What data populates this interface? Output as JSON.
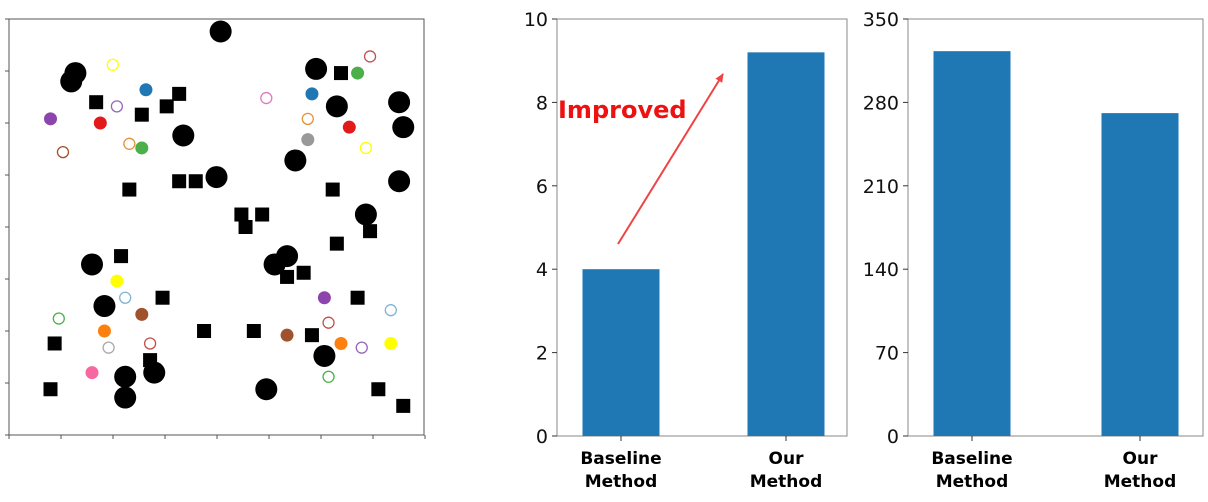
{
  "chart_data": [
    {
      "type": "scatter",
      "title": "",
      "xlabel": "",
      "ylabel": "",
      "xlim": [
        0,
        100
      ],
      "ylim": [
        0,
        100
      ],
      "tick_labels_shown": false,
      "obstacles": [
        {
          "x": 51,
          "y": 97,
          "kind": "round"
        },
        {
          "x": 16,
          "y": 87,
          "kind": "round"
        },
        {
          "x": 15,
          "y": 85,
          "kind": "round"
        },
        {
          "x": 74,
          "y": 88,
          "kind": "round"
        },
        {
          "x": 80,
          "y": 87,
          "kind": "square"
        },
        {
          "x": 41,
          "y": 82,
          "kind": "square"
        },
        {
          "x": 38,
          "y": 79,
          "kind": "square"
        },
        {
          "x": 21,
          "y": 80,
          "kind": "square"
        },
        {
          "x": 32,
          "y": 77,
          "kind": "square"
        },
        {
          "x": 79,
          "y": 79,
          "kind": "round"
        },
        {
          "x": 94,
          "y": 80,
          "kind": "round"
        },
        {
          "x": 95,
          "y": 74,
          "kind": "round"
        },
        {
          "x": 42,
          "y": 72,
          "kind": "round"
        },
        {
          "x": 69,
          "y": 66,
          "kind": "round"
        },
        {
          "x": 29,
          "y": 59,
          "kind": "square"
        },
        {
          "x": 41,
          "y": 61,
          "kind": "square"
        },
        {
          "x": 45,
          "y": 61,
          "kind": "square"
        },
        {
          "x": 50,
          "y": 62,
          "kind": "round"
        },
        {
          "x": 94,
          "y": 61,
          "kind": "round"
        },
        {
          "x": 78,
          "y": 59,
          "kind": "square"
        },
        {
          "x": 56,
          "y": 53,
          "kind": "square"
        },
        {
          "x": 61,
          "y": 53,
          "kind": "square"
        },
        {
          "x": 57,
          "y": 50,
          "kind": "square"
        },
        {
          "x": 86,
          "y": 53,
          "kind": "round"
        },
        {
          "x": 87,
          "y": 49,
          "kind": "square"
        },
        {
          "x": 79,
          "y": 46,
          "kind": "square"
        },
        {
          "x": 67,
          "y": 43,
          "kind": "round"
        },
        {
          "x": 64,
          "y": 41,
          "kind": "round"
        },
        {
          "x": 27,
          "y": 43,
          "kind": "square"
        },
        {
          "x": 20,
          "y": 41,
          "kind": "round"
        },
        {
          "x": 71,
          "y": 39,
          "kind": "square"
        },
        {
          "x": 67,
          "y": 38,
          "kind": "square"
        },
        {
          "x": 23,
          "y": 31,
          "kind": "round"
        },
        {
          "x": 37,
          "y": 33,
          "kind": "square"
        },
        {
          "x": 84,
          "y": 33,
          "kind": "square"
        },
        {
          "x": 11,
          "y": 22,
          "kind": "square"
        },
        {
          "x": 47,
          "y": 25,
          "kind": "square"
        },
        {
          "x": 59,
          "y": 25,
          "kind": "square"
        },
        {
          "x": 73,
          "y": 24,
          "kind": "square"
        },
        {
          "x": 76,
          "y": 19,
          "kind": "round"
        },
        {
          "x": 34,
          "y": 18,
          "kind": "square"
        },
        {
          "x": 35,
          "y": 15,
          "kind": "round"
        },
        {
          "x": 28,
          "y": 14,
          "kind": "round"
        },
        {
          "x": 10,
          "y": 11,
          "kind": "square"
        },
        {
          "x": 62,
          "y": 11,
          "kind": "round"
        },
        {
          "x": 28,
          "y": 9,
          "kind": "round"
        },
        {
          "x": 89,
          "y": 11,
          "kind": "square"
        },
        {
          "x": 95,
          "y": 7,
          "kind": "square"
        }
      ],
      "agents": [
        {
          "x": 25,
          "y": 89,
          "color": "#ffff00",
          "filled": false
        },
        {
          "x": 33,
          "y": 83,
          "color": "#1f77b4",
          "filled": true
        },
        {
          "x": 26,
          "y": 79,
          "color": "#9467bd",
          "filled": false
        },
        {
          "x": 10,
          "y": 76,
          "color": "#8e44ad",
          "filled": true
        },
        {
          "x": 22,
          "y": 75,
          "color": "#e31a1c",
          "filled": true
        },
        {
          "x": 29,
          "y": 70,
          "color": "#e69138",
          "filled": false
        },
        {
          "x": 32,
          "y": 69,
          "color": "#4daf4a",
          "filled": true
        },
        {
          "x": 13,
          "y": 68,
          "color": "#a0522d",
          "filled": false
        },
        {
          "x": 62,
          "y": 81,
          "color": "#e377c2",
          "filled": false
        },
        {
          "x": 73,
          "y": 82,
          "color": "#1f77b4",
          "filled": true
        },
        {
          "x": 84,
          "y": 87,
          "color": "#4daf4a",
          "filled": true
        },
        {
          "x": 87,
          "y": 91,
          "color": "#c0504d",
          "filled": false
        },
        {
          "x": 72,
          "y": 76,
          "color": "#e69138",
          "filled": false
        },
        {
          "x": 82,
          "y": 74,
          "color": "#e31a1c",
          "filled": true
        },
        {
          "x": 72,
          "y": 71,
          "color": "#999999",
          "filled": true
        },
        {
          "x": 86,
          "y": 69,
          "color": "#ffff00",
          "filled": false
        },
        {
          "x": 26,
          "y": 37,
          "color": "#ffff00",
          "filled": true
        },
        {
          "x": 28,
          "y": 33,
          "color": "#7fb3d5",
          "filled": false
        },
        {
          "x": 32,
          "y": 29,
          "color": "#a0522d",
          "filled": true
        },
        {
          "x": 12,
          "y": 28,
          "color": "#4daf4a",
          "filled": false
        },
        {
          "x": 23,
          "y": 25,
          "color": "#ff7f0e",
          "filled": true
        },
        {
          "x": 24,
          "y": 21,
          "color": "#aaaaaa",
          "filled": false
        },
        {
          "x": 34,
          "y": 22,
          "color": "#c0504d",
          "filled": false
        },
        {
          "x": 20,
          "y": 15,
          "color": "#f768a1",
          "filled": true
        },
        {
          "x": 76,
          "y": 33,
          "color": "#8e44ad",
          "filled": true
        },
        {
          "x": 92,
          "y": 30,
          "color": "#7fb3d5",
          "filled": false
        },
        {
          "x": 77,
          "y": 27,
          "color": "#c0504d",
          "filled": false
        },
        {
          "x": 67,
          "y": 24,
          "color": "#a0522d",
          "filled": true
        },
        {
          "x": 80,
          "y": 22,
          "color": "#ff7f0e",
          "filled": true
        },
        {
          "x": 85,
          "y": 21,
          "color": "#9467bd",
          "filled": false
        },
        {
          "x": 92,
          "y": 22,
          "color": "#ffff00",
          "filled": true
        },
        {
          "x": 77,
          "y": 14,
          "color": "#4daf4a",
          "filled": false
        }
      ]
    },
    {
      "type": "bar",
      "title": "",
      "xlabel": "",
      "ylabel": "",
      "categories": [
        "Baseline\nMethod",
        "Our\nMethod"
      ],
      "values": [
        4.0,
        9.2
      ],
      "ylim": [
        0,
        10
      ],
      "yticks": [
        "0",
        "2",
        "4",
        "6",
        "8",
        "10"
      ],
      "bar_color": "#1f77b4",
      "annotation": {
        "text": "Improved",
        "color": "#ee1111",
        "arrow_color": "#ee4444"
      }
    },
    {
      "type": "bar",
      "title": "",
      "xlabel": "",
      "ylabel": "",
      "categories": [
        "Baseline\nMethod",
        "Our\nMethod"
      ],
      "values": [
        323,
        271
      ],
      "ylim": [
        0,
        350
      ],
      "yticks": [
        "0",
        "70",
        "140",
        "210",
        "280",
        "350"
      ],
      "bar_color": "#1f77b4"
    }
  ]
}
